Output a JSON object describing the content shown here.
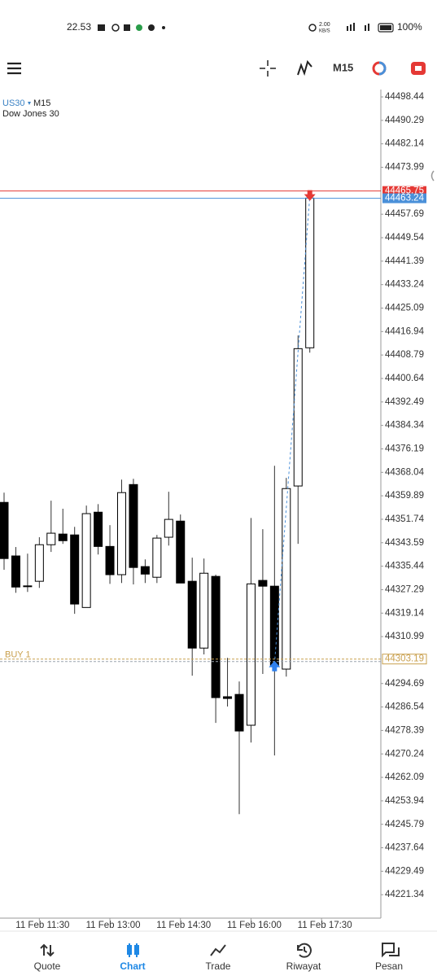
{
  "status_bar": {
    "time": "22.53",
    "network_speed": "2.00",
    "speed_unit": "KB/S",
    "battery": "100%"
  },
  "toolbar": {
    "timeframe": "M15"
  },
  "symbol": {
    "name": "US30",
    "timeframe": "M15",
    "description": "Dow Jones 30"
  },
  "chart_data": {
    "type": "candlestick",
    "open": [
      44357.6,
      44339.0,
      44328.6,
      44330.2,
      44342.9,
      44346.6,
      44346.3,
      44321.1,
      44354.2,
      44342.3,
      44332.5,
      44363.8,
      44335.3,
      44331.6,
      44345.5,
      44351.1,
      44330.2,
      44307.0,
      44331.9,
      44290.1,
      44290.9,
      44280.2,
      44330.5,
      44328.5,
      44299.7,
      44363.3,
      44411.3
    ],
    "high": [
      44361.0,
      44342.1,
      44339.8,
      44345.5,
      44358.2,
      44355.4,
      44349.1,
      44356.5,
      44357.0,
      44349.7,
      44365.5,
      44365.8,
      44337.8,
      44346.3,
      44361.3,
      44353.4,
      44338.4,
      44338.1,
      44332.5,
      44303.6,
      44295.4,
      44352.2,
      44348.3,
      44370.3,
      44366.1,
      44415.6,
      44465.3
    ],
    "low": [
      44334.2,
      44326.2,
      44326.5,
      44327.9,
      44340.4,
      44343.2,
      44318.9,
      44321.1,
      44339.5,
      44329.3,
      44329.6,
      44329.1,
      44329.6,
      44329.6,
      44342.6,
      44329.6,
      44297.4,
      44304.8,
      44281.0,
      44286.7,
      44249.3,
      44274.2,
      44298.0,
      44269.7,
      44297.1,
      44343.2,
      44409.6
    ],
    "close": [
      44338.1,
      44328.2,
      44328.5,
      44342.9,
      44346.9,
      44344.3,
      44322.3,
      44353.7,
      44342.3,
      44332.5,
      44361.0,
      44335.0,
      44332.7,
      44345.2,
      44351.7,
      44329.6,
      44307.0,
      44333.0,
      44289.8,
      44289.5,
      44278.2,
      44329.3,
      44328.5,
      44300.8,
      44362.4,
      44411.0,
      44463.3
    ],
    "up_color": "#ffffff",
    "down_color": "#000000",
    "ylim": [
      44213.2,
      44501.0
    ],
    "yticks": [
      44498.44,
      44490.29,
      44482.14,
      44473.99,
      44457.69,
      44449.54,
      44441.39,
      44433.24,
      44425.09,
      44416.94,
      44408.79,
      44400.64,
      44392.49,
      44384.34,
      44376.19,
      44368.04,
      44359.89,
      44351.74,
      44343.59,
      44335.44,
      44327.29,
      44319.14,
      44310.99,
      44294.69,
      44286.54,
      44278.39,
      44270.24,
      44262.09,
      44253.94,
      44245.79,
      44237.64,
      44229.49,
      44221.34
    ],
    "xticks": [
      "11 Feb 11:30",
      "11 Feb 13:00",
      "11 Feb 14:30",
      "11 Feb 16:00",
      "11 Feb 17:30"
    ],
    "price_lines": [
      {
        "value": 44465.75,
        "color": "#e53935"
      },
      {
        "value": 44463.24,
        "color": "#4a90d9"
      }
    ],
    "position": {
      "label": "BUY 1",
      "value": 44303.19,
      "color": "#c9a04e"
    }
  },
  "nav": [
    {
      "label": "Quote"
    },
    {
      "label": "Chart"
    },
    {
      "label": "Trade"
    },
    {
      "label": "Riwayat"
    },
    {
      "label": "Pesan"
    }
  ]
}
